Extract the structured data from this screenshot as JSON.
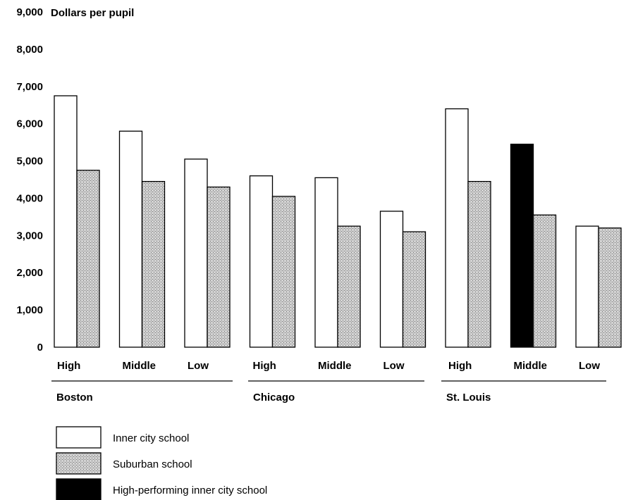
{
  "chart_data": {
    "type": "bar",
    "ylabel": "Dollars per pupil",
    "ylim": [
      0,
      9000
    ],
    "yticks": [
      "0",
      "1,000",
      "2,000",
      "3,000",
      "4,000",
      "5,000",
      "6,000",
      "7,000",
      "8,000",
      "9,000"
    ],
    "grid": false,
    "legend_position": "bottom-left",
    "groups": [
      {
        "name": "Boston",
        "categories": [
          {
            "label": "High",
            "bars": [
              {
                "type": "inner",
                "value": 6750
              },
              {
                "type": "suburban",
                "value": 4750
              }
            ]
          },
          {
            "label": "Middle",
            "bars": [
              {
                "type": "inner",
                "value": 5800
              },
              {
                "type": "suburban",
                "value": 4450
              }
            ]
          },
          {
            "label": "Low",
            "bars": [
              {
                "type": "inner",
                "value": 5050
              },
              {
                "type": "suburban",
                "value": 4300
              }
            ]
          }
        ]
      },
      {
        "name": "Chicago",
        "categories": [
          {
            "label": "High",
            "bars": [
              {
                "type": "inner",
                "value": 4600
              },
              {
                "type": "suburban",
                "value": 4050
              }
            ]
          },
          {
            "label": "Middle",
            "bars": [
              {
                "type": "inner",
                "value": 4550
              },
              {
                "type": "suburban",
                "value": 3250
              }
            ]
          },
          {
            "label": "Low",
            "bars": [
              {
                "type": "inner",
                "value": 3650
              },
              {
                "type": "suburban",
                "value": 3100
              }
            ]
          }
        ]
      },
      {
        "name": "St. Louis",
        "categories": [
          {
            "label": "High",
            "bars": [
              {
                "type": "inner",
                "value": 6400
              },
              {
                "type": "suburban",
                "value": 4450
              }
            ]
          },
          {
            "label": "Middle",
            "bars": [
              {
                "type": "high_performing",
                "value": 5450
              },
              {
                "type": "suburban",
                "value": 3550
              }
            ]
          },
          {
            "label": "Low",
            "bars": [
              {
                "type": "inner",
                "value": 3250
              },
              {
                "type": "suburban",
                "value": 3200
              }
            ]
          }
        ]
      }
    ],
    "legend": [
      {
        "key": "inner",
        "label": "Inner city school"
      },
      {
        "key": "suburban",
        "label": "Suburban school"
      },
      {
        "key": "high_performing",
        "label": "High-performing inner city school"
      }
    ]
  }
}
